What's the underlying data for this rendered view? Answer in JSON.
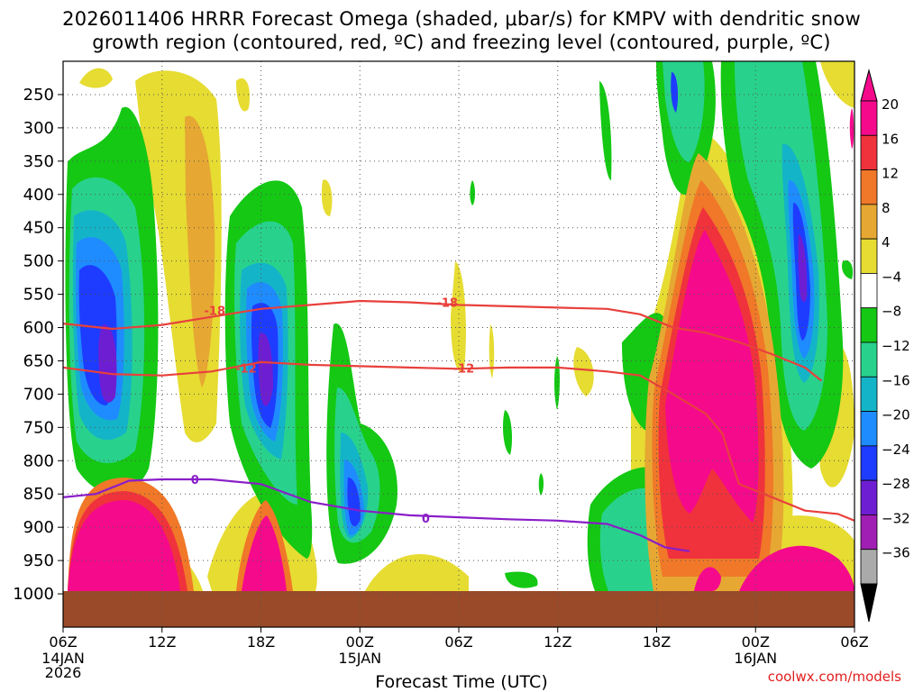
{
  "chart_data": {
    "type": "heatmap",
    "title_line1": "2026011406 HRRR Forecast Omega (shaded, μbar/s) for KMPV with dendritic snow",
    "title_line2": "growth region (contoured, red, ºC) and freezing level (contoured, purple, ºC)",
    "xlabel": "Forecast Time (UTC)",
    "x_ticks": [
      "06Z",
      "12Z",
      "18Z",
      "00Z",
      "06Z",
      "12Z",
      "18Z",
      "00Z",
      "06Z"
    ],
    "x_hours": [
      0,
      6,
      12,
      18,
      24,
      30,
      36,
      42,
      48
    ],
    "date_labels": [
      {
        "hour": 0,
        "lines": [
          "14JAN",
          "2026"
        ]
      },
      {
        "hour": 18,
        "lines": [
          "15JAN"
        ]
      },
      {
        "hour": 42,
        "lines": [
          "16JAN"
        ]
      }
    ],
    "y_ticks": [
      250,
      300,
      350,
      400,
      450,
      500,
      550,
      600,
      650,
      700,
      750,
      800,
      850,
      900,
      950,
      1000
    ],
    "y_range_hpa": [
      200,
      1050
    ],
    "colorbar": {
      "labels": [
        "20",
        "16",
        "12",
        "8",
        "4",
        "−4",
        "−8",
        "−12",
        "−16",
        "−20",
        "−24",
        "−28",
        "−32",
        "−36"
      ],
      "colors": [
        "#f50a8c",
        "#f0323c",
        "#f07828",
        "#e6a832",
        "#e6dc32",
        "#ffffff",
        "#14c814",
        "#28d28c",
        "#14b4c8",
        "#1e8cff",
        "#1e3cff",
        "#6e1ed2",
        "#a01eb4",
        "#aaaaaa"
      ]
    },
    "contours": [
      {
        "name": "dgz-top",
        "label": "-18",
        "color": "#e8403c",
        "values_hpa": [
          [
            0,
            594
          ],
          [
            3,
            602
          ],
          [
            6,
            596
          ],
          [
            9,
            584
          ],
          [
            12,
            572
          ],
          [
            15,
            566
          ],
          [
            18,
            560
          ],
          [
            21,
            562
          ],
          [
            24,
            566
          ],
          [
            27,
            568
          ],
          [
            30,
            570
          ],
          [
            33,
            572
          ],
          [
            35,
            580
          ],
          [
            37,
            600
          ],
          [
            39,
            608
          ],
          [
            41,
            622
          ],
          [
            43,
            640
          ],
          [
            45,
            660
          ],
          [
            46,
            680
          ]
        ]
      },
      {
        "name": "dgz-bottom",
        "label": "-12",
        "color": "#e8403c",
        "values_hpa": [
          [
            0,
            660
          ],
          [
            3,
            670
          ],
          [
            6,
            672
          ],
          [
            9,
            666
          ],
          [
            12,
            652
          ],
          [
            15,
            656
          ],
          [
            18,
            658
          ],
          [
            21,
            660
          ],
          [
            24,
            662
          ],
          [
            27,
            660
          ],
          [
            30,
            660
          ],
          [
            33,
            666
          ],
          [
            35,
            672
          ],
          [
            37,
            700
          ],
          [
            39,
            730
          ],
          [
            40,
            760
          ],
          [
            40.5,
            800
          ],
          [
            41,
            835
          ],
          [
            43,
            855
          ],
          [
            45,
            875
          ],
          [
            47,
            880
          ],
          [
            48,
            890
          ]
        ]
      },
      {
        "name": "freezing-level",
        "label": "0",
        "color": "#8a1ec8",
        "values_hpa": [
          [
            0,
            855
          ],
          [
            2,
            850
          ],
          [
            4,
            830
          ],
          [
            6,
            828
          ],
          [
            9,
            828
          ],
          [
            12,
            835
          ],
          [
            15,
            862
          ],
          [
            18,
            875
          ],
          [
            21,
            882
          ],
          [
            24,
            885
          ],
          [
            27,
            888
          ],
          [
            30,
            890
          ],
          [
            33,
            895
          ],
          [
            35,
            912
          ],
          [
            36.5,
            930
          ],
          [
            38,
            936
          ]
        ]
      }
    ],
    "omega_regions_text": []
  },
  "labels": {
    "temp_18a": "-18",
    "temp_18b": "-18",
    "temp_12a": "-12",
    "temp_12b": "-12",
    "fz_0a": "0",
    "fz_0b": "0"
  },
  "credit": "coolwx.com/models"
}
